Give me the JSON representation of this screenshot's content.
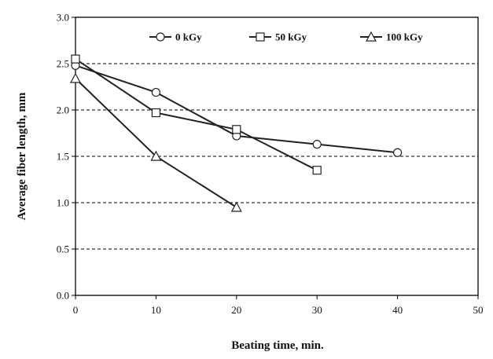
{
  "chart_data": {
    "type": "line",
    "xlabel": "Beating time, min.",
    "ylabel": "Average fiber length, mm",
    "xlim": [
      0,
      50
    ],
    "ylim": [
      0.0,
      3.0
    ],
    "xticks": [
      "0",
      "10",
      "20",
      "30",
      "40",
      "50"
    ],
    "yticks": [
      "0.0",
      "0.5",
      "1.0",
      "1.5",
      "2.0",
      "2.5",
      "3.0"
    ],
    "grid": "horizontal dashed",
    "legend_position": "top",
    "series": [
      {
        "name": "0 kGy",
        "marker": "circle",
        "x": [
          0,
          10,
          20,
          30,
          40
        ],
        "values": [
          2.48,
          2.19,
          1.72,
          1.63,
          1.54
        ]
      },
      {
        "name": "50 kGy",
        "marker": "square",
        "x": [
          0,
          10,
          20,
          30
        ],
        "values": [
          2.55,
          1.97,
          1.79,
          1.35
        ]
      },
      {
        "name": "100 kGy",
        "marker": "triangle",
        "x": [
          0,
          10,
          20
        ],
        "values": [
          2.34,
          1.5,
          0.95
        ]
      }
    ]
  }
}
